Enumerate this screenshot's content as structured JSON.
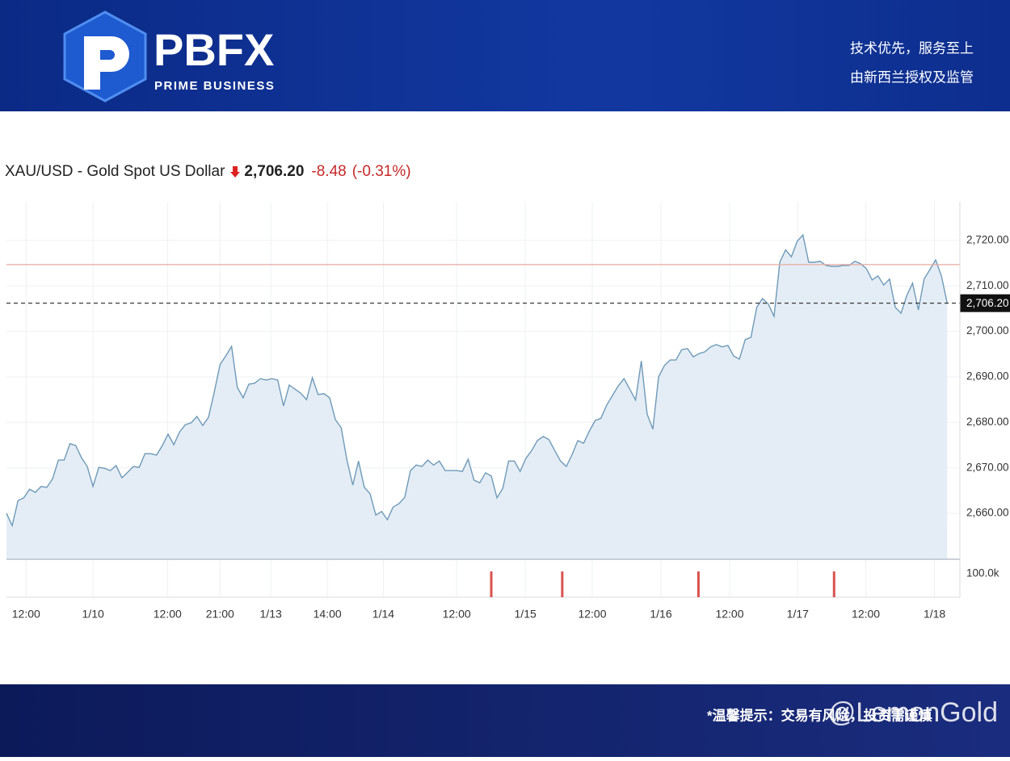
{
  "header": {
    "brand": "PBFX",
    "tagline": "PRIME BUSINESS",
    "slogan": "技术优先，服务至上",
    "regulation": "由新西兰授权及监管"
  },
  "footer": {
    "notice": "*温馨提示：交易有风险，投资需谨慎",
    "watermark": "@LemonGold"
  },
  "chart_data": {
    "type": "line",
    "title": "XAU/USD - Gold Spot US Dollar",
    "last": {
      "value": 2706.2,
      "label": "2,706.20"
    },
    "change": -8.48,
    "change_pct": {
      "value": -0.31,
      "label": "(-0.31%)"
    },
    "prev_close": 2714.68,
    "color": "#6f9ab8",
    "fill": "#e4edf5",
    "ref_color": "#e8a9a0",
    "xlim": [
      0,
      165.2
    ],
    "xticks": [
      {
        "value": 3.4,
        "label": "12:00"
      },
      {
        "value": 15.0,
        "label": "1/10"
      },
      {
        "value": 27.9,
        "label": "12:00"
      },
      {
        "value": 37.0,
        "label": "21:00"
      },
      {
        "value": 45.8,
        "label": "1/13"
      },
      {
        "value": 55.6,
        "label": "14:00"
      },
      {
        "value": 65.3,
        "label": "1/14"
      },
      {
        "value": 78.0,
        "label": "12:00"
      },
      {
        "value": 89.9,
        "label": "1/15"
      },
      {
        "value": 101.5,
        "label": "12:00"
      },
      {
        "value": 113.4,
        "label": "1/16"
      },
      {
        "value": 125.3,
        "label": "12:00"
      },
      {
        "value": 137.1,
        "label": "1/17"
      },
      {
        "value": 148.9,
        "label": "12:00"
      },
      {
        "value": 160.8,
        "label": "1/18"
      }
    ],
    "ylim": [
      2649.9,
      2728.5
    ],
    "yticks": [
      {
        "value": 2660,
        "label": "2,660.00"
      },
      {
        "value": 2670,
        "label": "2,670.00"
      },
      {
        "value": 2680,
        "label": "2,680.00"
      },
      {
        "value": 2690,
        "label": "2,690.00"
      },
      {
        "value": 2700,
        "label": "2,700.00"
      },
      {
        "value": 2710,
        "label": "2,710.00"
      },
      {
        "value": 2720,
        "label": "2,720.00"
      }
    ],
    "grid": true,
    "values": [
      2660.0,
      2657.3,
      2662.8,
      2663.4,
      2665.3,
      2664.6,
      2665.9,
      2665.7,
      2667.6,
      2671.7,
      2671.7,
      2675.3,
      2674.9,
      2672.2,
      2670.3,
      2665.9,
      2670.1,
      2669.9,
      2669.4,
      2670.5,
      2667.8,
      2669.0,
      2670.3,
      2670.1,
      2673.1,
      2673.1,
      2672.8,
      2674.9,
      2677.4,
      2675.1,
      2677.9,
      2679.5,
      2679.9,
      2681.3,
      2679.3,
      2681.1,
      2686.6,
      2692.7,
      2694.6,
      2696.7,
      2687.7,
      2685.4,
      2688.4,
      2688.6,
      2689.6,
      2689.3,
      2689.6,
      2689.3,
      2683.6,
      2688.2,
      2687.3,
      2686.4,
      2685.0,
      2689.8,
      2686.1,
      2686.3,
      2685.4,
      2680.6,
      2678.8,
      2671.7,
      2666.2,
      2671.5,
      2665.7,
      2664.3,
      2659.6,
      2660.4,
      2658.6,
      2661.4,
      2662.1,
      2663.5,
      2669.4,
      2670.6,
      2670.3,
      2671.7,
      2670.6,
      2671.5,
      2669.4,
      2669.4,
      2669.4,
      2669.2,
      2671.9,
      2667.3,
      2666.7,
      2668.9,
      2668.2,
      2663.4,
      2665.5,
      2671.5,
      2671.5,
      2669.2,
      2672.1,
      2673.8,
      2676.0,
      2676.9,
      2676.2,
      2673.8,
      2671.5,
      2670.3,
      2672.9,
      2676.0,
      2675.4,
      2678.1,
      2680.4,
      2680.9,
      2683.8,
      2685.9,
      2688.0,
      2689.6,
      2687.3,
      2684.9,
      2693.5,
      2681.8,
      2678.5,
      2690.0,
      2692.5,
      2693.7,
      2693.7,
      2696.0,
      2696.2,
      2694.4,
      2695.1,
      2695.5,
      2696.6,
      2697.1,
      2696.6,
      2696.9,
      2694.6,
      2693.9,
      2698.2,
      2698.7,
      2705.3,
      2707.2,
      2706.0,
      2703.3,
      2715.2,
      2717.9,
      2716.4,
      2719.8,
      2721.2,
      2715.2,
      2715.2,
      2715.4,
      2714.5,
      2714.3,
      2714.3,
      2714.5,
      2714.5,
      2715.4,
      2714.9,
      2713.8,
      2711.3,
      2712.2,
      2710.2,
      2711.5,
      2705.3,
      2704.0,
      2707.9,
      2710.6,
      2704.7,
      2711.5,
      2713.6,
      2715.7,
      2712.2,
      2706.2
    ],
    "volume": {
      "color": "#d9534f",
      "x": [
        84.0,
        96.3,
        119.9,
        143.4
      ],
      "values": [
        110000,
        110000,
        110000,
        110000
      ],
      "ylim": [
        0,
        162000
      ],
      "yticks": [
        {
          "value": 100000,
          "label": "100.0k"
        }
      ]
    }
  }
}
